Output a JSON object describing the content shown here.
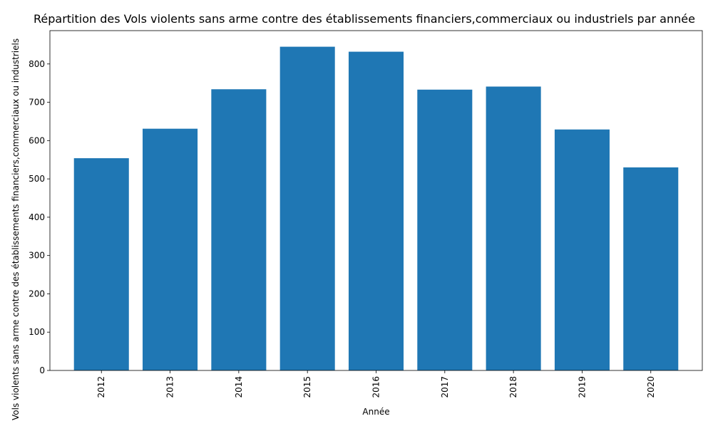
{
  "chart_data": {
    "type": "bar",
    "title": "Répartition des Vols violents sans arme contre des établissements financiers,commerciaux ou industriels par année",
    "xlabel": "Année",
    "ylabel": "Vols violents sans arme contre des établissements financiers,commerciaux ou industriels",
    "categories": [
      "2012",
      "2013",
      "2014",
      "2015",
      "2016",
      "2017",
      "2018",
      "2019",
      "2020"
    ],
    "values": [
      554,
      631,
      734,
      845,
      832,
      733,
      741,
      629,
      530
    ],
    "ylim": [
      0,
      887
    ],
    "yticks": [
      0,
      100,
      200,
      300,
      400,
      500,
      600,
      700,
      800
    ],
    "bar_color": "#1f77b4",
    "grid": false,
    "legend": "none"
  }
}
